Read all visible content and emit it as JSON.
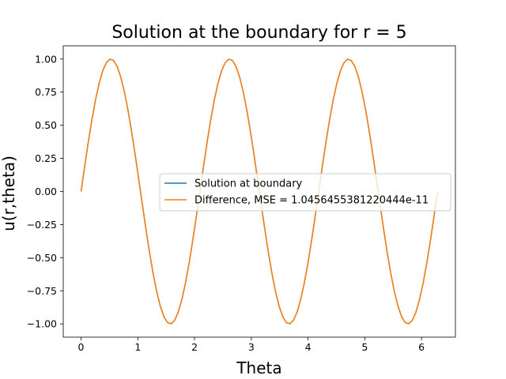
{
  "chart_data": {
    "type": "line",
    "title": "Solution at the boundary for r = 5",
    "xlabel": "Theta",
    "ylabel": "u(r,theta)",
    "xlim": [
      -0.314,
      6.597
    ],
    "ylim": [
      -1.1,
      1.1
    ],
    "xticks": [
      0,
      1,
      2,
      3,
      4,
      5,
      6
    ],
    "xtick_labels": [
      "0",
      "1",
      "2",
      "3",
      "4",
      "5",
      "6"
    ],
    "yticks": [
      -1.0,
      -0.75,
      -0.5,
      -0.25,
      0.0,
      0.25,
      0.5,
      0.75,
      1.0
    ],
    "ytick_labels": [
      "−1.00",
      "−0.75",
      "−0.50",
      "−0.25",
      "0.00",
      "0.25",
      "0.50",
      "0.75",
      "1.00"
    ],
    "grid": false,
    "legend_position": "center-right",
    "series": [
      {
        "name": "Solution at boundary",
        "color": "#1f77b4",
        "function": "sin(3*theta)",
        "x_range": [
          0,
          6.2832
        ],
        "n_points": 100
      },
      {
        "name": "Difference, MSE = 1.0456455381220444e-11",
        "color": "#ff7f0e",
        "function": "sin(3*theta)",
        "x_range": [
          0,
          6.2832
        ],
        "n_points": 100
      }
    ]
  }
}
